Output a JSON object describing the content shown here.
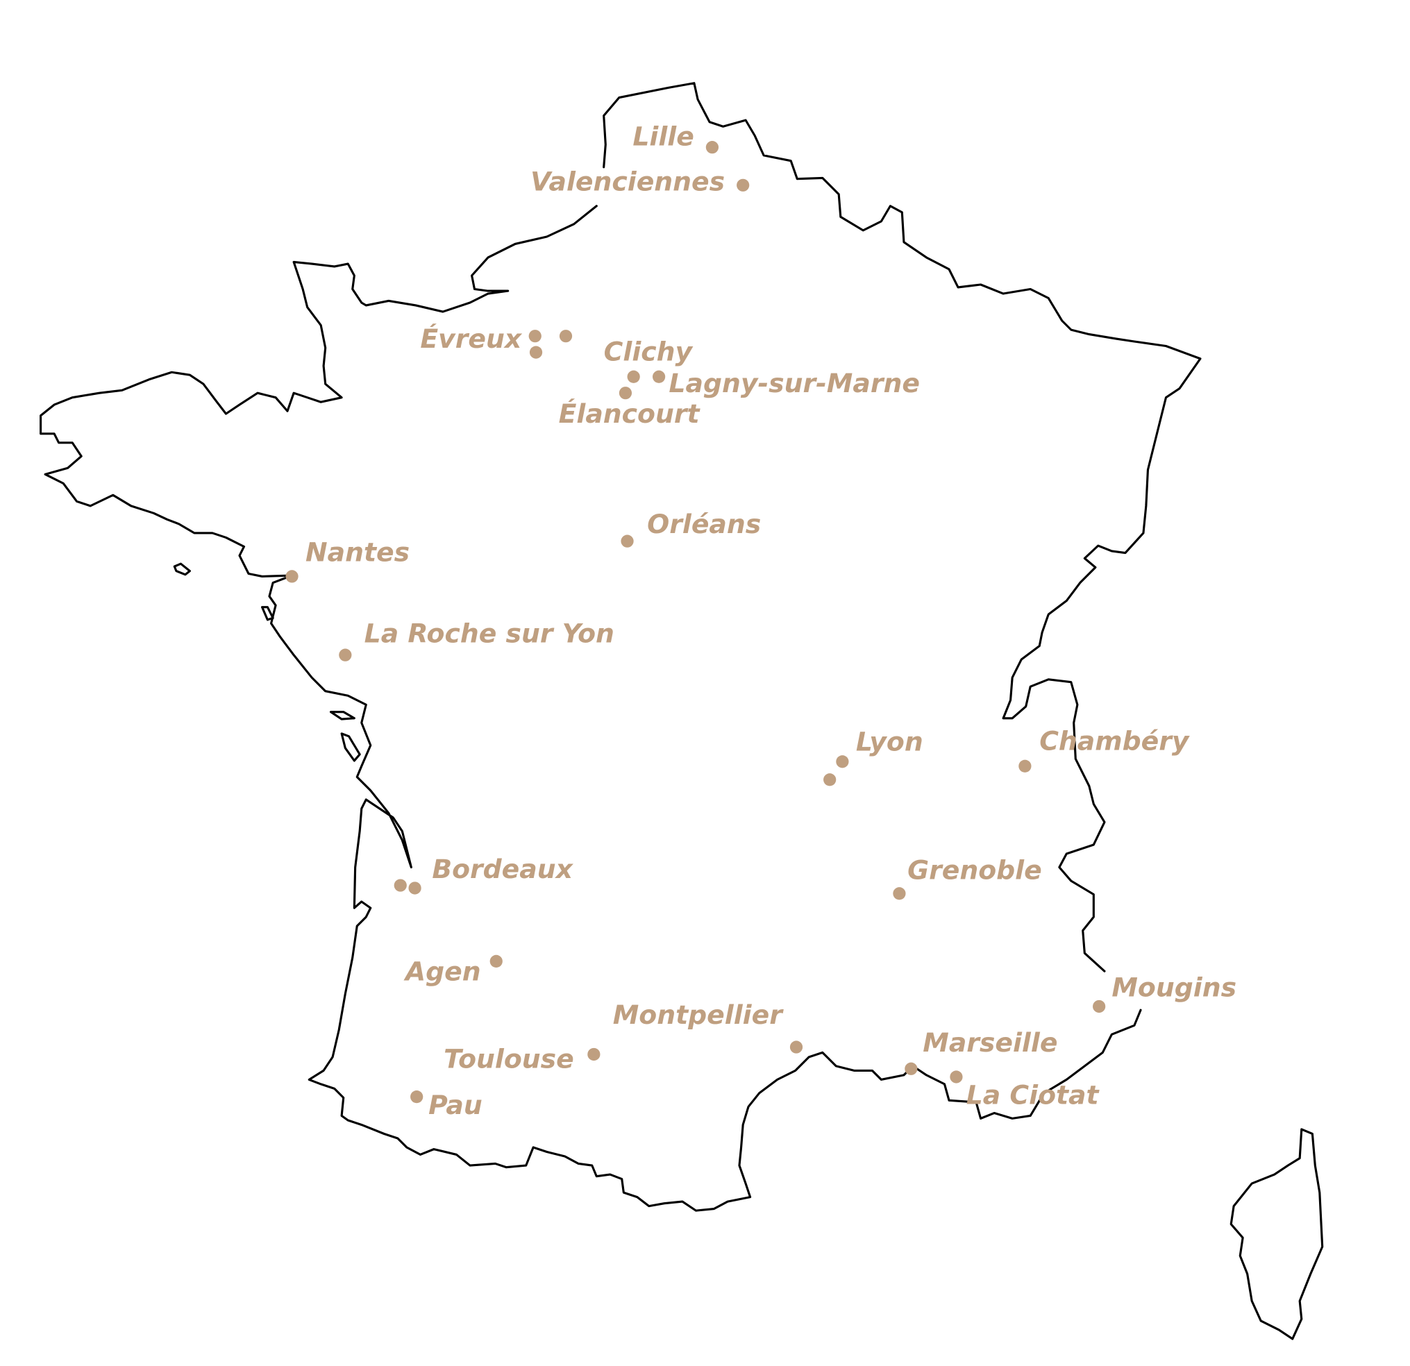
{
  "map": {
    "country_outline": "France (mainland and Corsica)",
    "marker_color": "#bf9f80",
    "outline_color": "#000000",
    "cities": [
      {
        "label": "Lille"
      },
      {
        "label": "Valenciennes"
      },
      {
        "label": "Évreux"
      },
      {
        "label": "Clichy"
      },
      {
        "label": "Lagny-sur-Marne"
      },
      {
        "label": "Élancourt"
      },
      {
        "label": "Orléans"
      },
      {
        "label": "Nantes"
      },
      {
        "label": "La Roche sur Yon"
      },
      {
        "label": "Lyon"
      },
      {
        "label": "Chambéry"
      },
      {
        "label": "Bordeaux"
      },
      {
        "label": "Grenoble"
      },
      {
        "label": "Agen"
      },
      {
        "label": "Montpellier"
      },
      {
        "label": "Toulouse"
      },
      {
        "label": "Pau"
      },
      {
        "label": "Marseille"
      },
      {
        "label": "La Ciotat"
      },
      {
        "label": "Mougins"
      }
    ]
  }
}
